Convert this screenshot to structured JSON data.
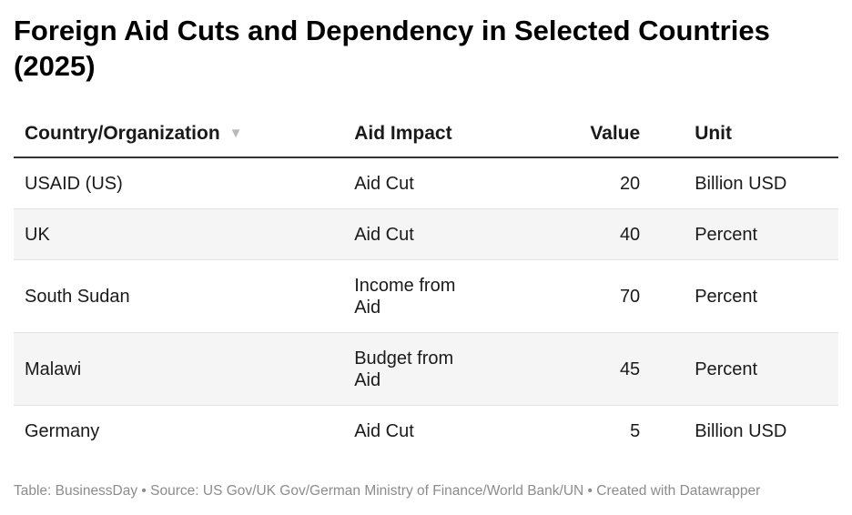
{
  "title": "Foreign Aid Cuts and Dependency in Selected Countries (2025)",
  "columns": {
    "country": "Country/Organization",
    "impact": "Aid Impact",
    "value": "Value",
    "unit": "Unit"
  },
  "sort_icon": "sort-descending-icon",
  "rows": [
    {
      "country": "USAID (US)",
      "impact": "Aid Cut",
      "value": "20",
      "unit": "Billion USD"
    },
    {
      "country": "UK",
      "impact": "Aid Cut",
      "value": "40",
      "unit": "Percent"
    },
    {
      "country": "South Sudan",
      "impact": "Income from Aid",
      "value": "70",
      "unit": "Percent"
    },
    {
      "country": "Malawi",
      "impact": "Budget from Aid",
      "value": "45",
      "unit": "Percent"
    },
    {
      "country": "Germany",
      "impact": "Aid Cut",
      "value": "5",
      "unit": "Billion USD"
    }
  ],
  "footer": "Table: BusinessDay • Source: US Gov/UK Gov/German Ministry of Finance/World Bank/UN • Created with Datawrapper",
  "chart_data": {
    "type": "table",
    "title": "Foreign Aid Cuts and Dependency in Selected Countries (2025)",
    "columns": [
      "Country/Organization",
      "Aid Impact",
      "Value",
      "Unit"
    ],
    "rows": [
      [
        "USAID (US)",
        "Aid Cut",
        20,
        "Billion USD"
      ],
      [
        "UK",
        "Aid Cut",
        40,
        "Percent"
      ],
      [
        "South Sudan",
        "Income from Aid",
        70,
        "Percent"
      ],
      [
        "Malawi",
        "Budget from Aid",
        45,
        "Percent"
      ],
      [
        "Germany",
        "Aid Cut",
        5,
        "Billion USD"
      ]
    ]
  },
  "colors": {
    "text": "#1a1a1a",
    "header_rule": "#333333",
    "row_divider": "#e2e2e2",
    "alt_row": "#f5f5f5",
    "footer_text": "#8c8c8c",
    "sort_icon": "#b9b9b9"
  }
}
